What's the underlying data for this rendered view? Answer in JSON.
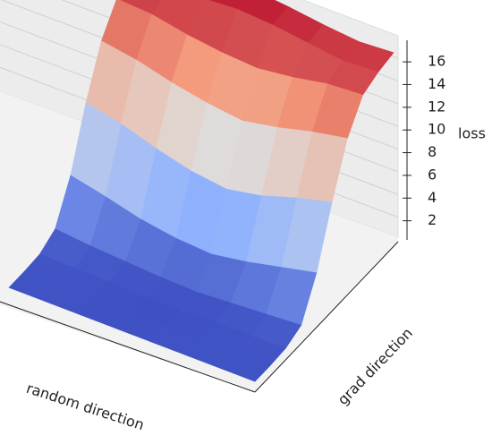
{
  "chart_data": {
    "type": "surface",
    "xlabel": "random direction",
    "ylabel": "grad direction",
    "zlabel": "loss",
    "zlim": [
      0,
      17.9
    ],
    "zticks": [
      2,
      4,
      6,
      8,
      10,
      12,
      14,
      16
    ],
    "grid": true,
    "colormap": [
      "#3b4cc0",
      "#8db0fe",
      "#dddddd",
      "#f49a7b",
      "#b40426"
    ],
    "z": [
      [
        0.3,
        0.3,
        0.3,
        0.3,
        0.3,
        0.3,
        0.3,
        0.3
      ],
      [
        0.3,
        0.3,
        0.2,
        0.2,
        0.2,
        0.3,
        0.3,
        0.3
      ],
      [
        0.4,
        0.3,
        0.3,
        0.2,
        0.2,
        0.3,
        0.3,
        0.4
      ],
      [
        1.2,
        0.9,
        0.7,
        0.5,
        0.4,
        0.6,
        0.8,
        1.0
      ],
      [
        4.5,
        3.8,
        3.0,
        2.5,
        2.3,
        2.8,
        3.5,
        4.2
      ],
      [
        9.5,
        8.8,
        7.8,
        7.0,
        6.6,
        7.2,
        8.2,
        9.0
      ],
      [
        13.5,
        13.0,
        12.2,
        11.6,
        11.2,
        11.8,
        12.6,
        13.2
      ],
      [
        15.8,
        15.6,
        15.0,
        14.6,
        14.4,
        14.8,
        15.4,
        15.6
      ],
      [
        16.6,
        16.2,
        16.8,
        17.0,
        16.8,
        16.4,
        16.0,
        16.2
      ],
      [
        16.8,
        16.4,
        17.2,
        17.3,
        17.0,
        16.6,
        16.3,
        16.5
      ]
    ]
  }
}
